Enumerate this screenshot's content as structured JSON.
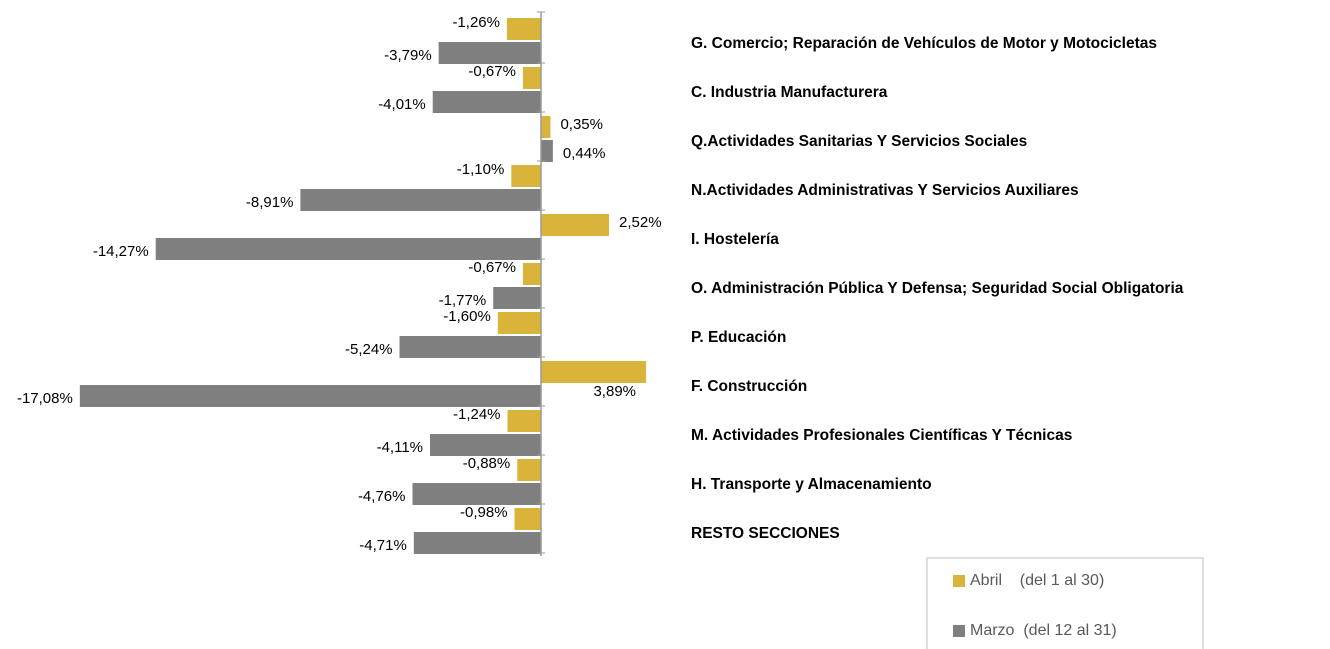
{
  "chart_data": {
    "type": "hbar",
    "categories": [
      "G. Comercio; Reparación de Vehículos de Motor y Motocicletas",
      "C. Industria Manufacturera",
      "Q.Actividades Sanitarias Y Servicios Sociales",
      "N.Actividades Administrativas Y Servicios Auxiliares",
      "I. Hostelería",
      "O. Administración Pública Y Defensa; Seguridad Social Obligatoria",
      "P. Educación",
      "F. Construcción",
      "M. Actividades Profesionales Científicas Y Técnicas",
      "H. Transporte y Almacenamiento",
      "RESTO SECCIONES"
    ],
    "series": [
      {
        "name": "Abril    (del 1 al 30)",
        "color": "#dab43a",
        "values": [
          -1.26,
          -0.67,
          0.35,
          -1.1,
          2.52,
          -0.67,
          -1.6,
          3.89,
          -1.24,
          -0.88,
          -0.98
        ],
        "value_labels": [
          "-1,26%",
          "-0,67%",
          "0,35%",
          "-1,10%",
          "2,52%",
          "-0,67%",
          "-1,60%",
          "3,89%",
          "-1,24%",
          "-0,88%",
          "-0,98%"
        ]
      },
      {
        "name": "Marzo  (del 12 al 31)",
        "color": "#7f7f7f",
        "values": [
          -3.79,
          -4.01,
          0.44,
          -8.91,
          -14.27,
          -1.77,
          -5.24,
          -17.08,
          -4.11,
          -4.76,
          -4.71
        ],
        "value_labels": [
          "-3,79%",
          "-4,01%",
          "0,44%",
          "-8,91%",
          "-14,27%",
          "-1,77%",
          "-5,24%",
          "-17,08%",
          "-4,11%",
          "-4,76%",
          "-4,71%"
        ]
      }
    ],
    "xlim": [
      -20,
      5
    ],
    "legend": "bottom-right"
  }
}
